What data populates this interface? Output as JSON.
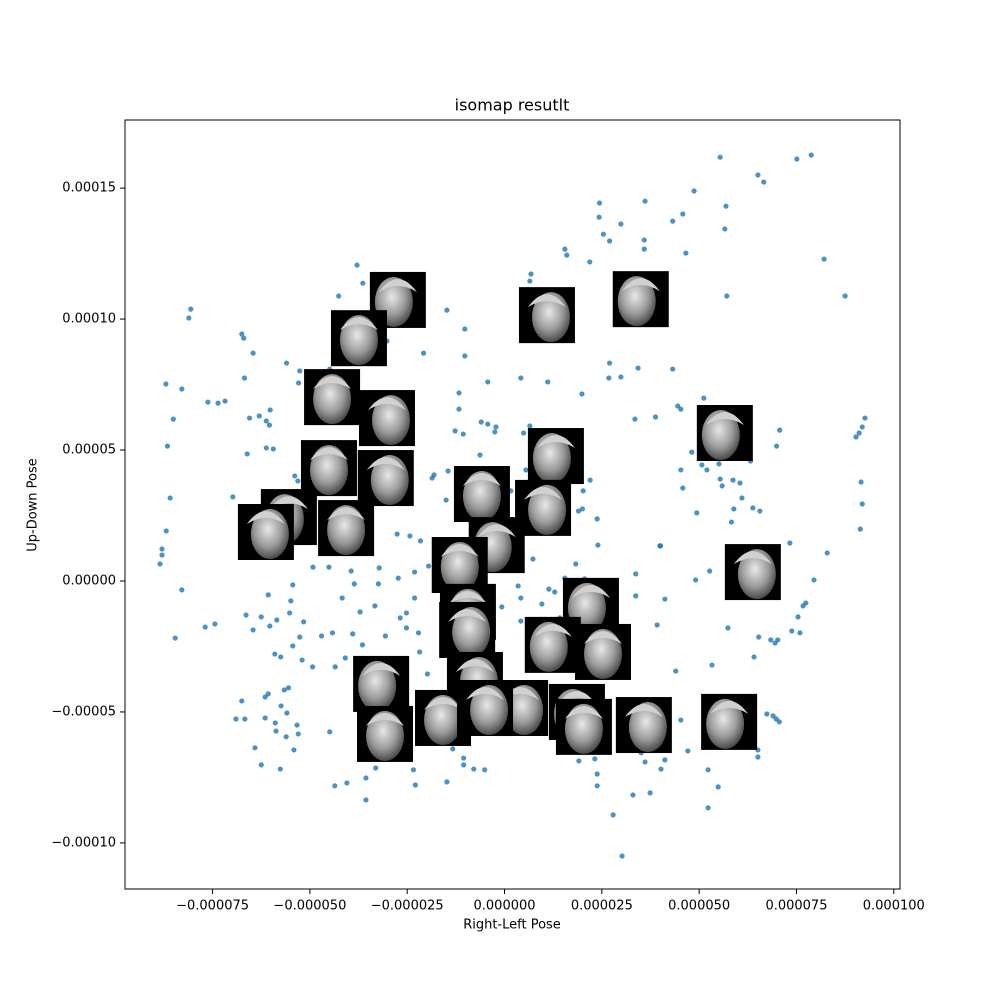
{
  "chart_data": {
    "type": "scatter",
    "title": "isomap resutlt",
    "x_label": "Right-Left Pose",
    "y_label": "Up-Down Pose",
    "color": "#1f77b4",
    "xlim": [
      -9.75e-05,
      0.0001016
    ],
    "ylim": [
      -0.0001176,
      0.000176
    ],
    "xticks": [
      {
        "value": -7.5e-05,
        "label": "−0.000075"
      },
      {
        "value": -5e-05,
        "label": "−0.000050"
      },
      {
        "value": -2.5e-05,
        "label": "−0.000025"
      },
      {
        "value": 0,
        "label": "0.000000"
      },
      {
        "value": 2.5e-05,
        "label": "0.000025"
      },
      {
        "value": 5e-05,
        "label": "0.000050"
      },
      {
        "value": 7.5e-05,
        "label": "0.000075"
      },
      {
        "value": 0.0001,
        "label": "0.000100"
      }
    ],
    "yticks": [
      {
        "value": -0.0001,
        "label": "−0.00010"
      },
      {
        "value": -5e-05,
        "label": "−0.00005"
      },
      {
        "value": 0,
        "label": "0.00000"
      },
      {
        "value": 5e-05,
        "label": "0.00005"
      },
      {
        "value": 0.0001,
        "label": "0.00010"
      },
      {
        "value": 0.00015,
        "label": "0.00015"
      }
    ],
    "x": [
      5.54e-05,
      7.51e-05,
      7.88e-05,
      6.51e-05,
      6.66e-05,
      4.87e-05,
      2.44e-05,
      4.58e-05,
      4.32e-05,
      5.69e-05,
      3.61e-05,
      2.99e-05,
      2.43e-05,
      2.54e-05,
      2.7e-05,
      3.59e-05,
      3.59e-05,
      4.66e-05,
      5.66e-05,
      1.55e-05,
      1.6e-05,
      2.19e-05,
      8.21e-05,
      8.75e-05,
      5.71e-05,
      6.8e-06,
      6.5e-06,
      -3.79e-05,
      -3.64e-05,
      -3.38e-05,
      -4.26e-05,
      -8.06e-05,
      -8.11e-05,
      -1.48e-05,
      -1.02e-05,
      -1.02e-05,
      -6.75e-05,
      -6.7e-05,
      -6.46e-05,
      -6.68e-05,
      -5.6e-05,
      -5.26e-05,
      -5.29e-05,
      -4.49e-05,
      -3.02e-05,
      -2.08e-05,
      -8.7e-05,
      -8.29e-05,
      -7.62e-05,
      -7.36e-05,
      -7.18e-05,
      -6.55e-05,
      -6.3e-05,
      -6.12e-05,
      -6.04e-05,
      -8.51e-05,
      -8.66e-05,
      -6.61e-05,
      -5.94e-05,
      -1.17e-05,
      -4.3e-06,
      4.2e-06,
      1.11e-05,
      1.99e-05,
      2.7e-05,
      2.68e-05,
      2.99e-05,
      3.43e-05,
      4.32e-05,
      3.88e-05,
      3.35e-05,
      4.53e-05,
      4.45e-05,
      -1.17e-05,
      -1.27e-05,
      -1.06e-05,
      -6e-06,
      -4.3e-06,
      -2.2e-06,
      -2.5e-06,
      4.9e-06,
      6.5e-06,
      5.12e-05,
      5.4e-05,
      6.17e-05,
      7.07e-05,
      6.99e-05,
      6.32e-05,
      4.81e-05,
      5.51e-05,
      5.07e-05,
      5.2e-05,
      4.53e-05,
      4.58e-05,
      5.54e-05,
      5.59e-05,
      5.87e-05,
      6.05e-05,
      6.1e-05,
      4.94e-05,
      5.89e-05,
      6.38e-05,
      6.56e-05,
      5.83e-05,
      9.26e-05,
      9.19e-05,
      9.03e-05,
      9.11e-05,
      9.16e-05,
      9.19e-05,
      9.14e-05,
      8.29e-05,
      7.33e-05,
      6.02e-05,
      5.27e-05,
      4.91e-05,
      4.12e-05,
      3.92e-05,
      3.99e-05,
      7.95e-05,
      7.74e-05,
      7.67e-05,
      7.54e-05,
      7.38e-05,
      7.59e-05,
      7.02e-05,
      6.95e-05,
      6.84e-05,
      6.53e-05,
      6.41e-05,
      5.74e-05,
      5.33e-05,
      4.4e-05,
      6.74e-05,
      6.9e-05,
      6.98e-05,
      7.06e-05,
      6.51e-05,
      6.51e-05,
      4.71e-05,
      5.23e-05,
      5.49e-05,
      5.23e-05,
      3.74e-05,
      3.3e-05,
      2.79e-05,
      3.02e-05,
      2.38e-05,
      2.38e-05,
      4.12e-05,
      3.61e-05,
      -8.8e-05,
      -8.8e-05,
      -8.85e-05,
      -8.59e-05,
      -8.69e-05,
      -8.29e-05,
      -8.46e-05,
      -7.69e-05,
      -7.44e-05,
      -6.98e-05,
      -6.64e-05,
      -6.25e-05,
      -6.07e-05,
      -6.46e-05,
      -6.03e-05,
      -5.85e-05,
      -5.52e-05,
      -5.49e-05,
      -5.44e-05,
      -5.9e-05,
      -5.75e-05,
      -5.44e-05,
      -5.26e-05,
      -5.16e-05,
      -4.7e-05,
      -4.42e-05,
      -3.9e-05,
      -4.93e-05,
      -5.2e-05,
      -6.75e-05,
      -6.9e-05,
      -6.67e-05,
      -6.15e-05,
      -6.07e-05,
      -6.15e-05,
      -5.89e-05,
      -5.74e-05,
      -5.66e-05,
      -5.55e-05,
      -5.59e-05,
      -5.87e-05,
      -5.61e-05,
      -5.33e-05,
      -5.3e-05,
      -6.41e-05,
      -5.41e-05,
      -6.25e-05,
      -5.76e-05,
      -4.49e-05,
      -4.36e-05,
      -4.05e-05,
      -3.56e-05,
      -3.56e-05,
      -3.31e-05,
      -2.34e-05,
      -2.29e-05,
      -1.48e-05,
      -1.05e-05,
      -7.9e-06,
      -5.1e-06,
      -1.05e-05,
      -1.33e-05,
      -4.92e-05,
      -4.51e-05,
      -3.94e-05,
      -3.22e-05,
      -3.86e-05,
      -3.24e-05,
      -2.73e-05,
      -4.17e-05,
      -3.71e-05,
      -3.33e-05,
      -4.35e-05,
      -4.09e-05,
      -3.65e-05,
      -3.06e-05,
      -2.68e-05,
      -2.52e-05,
      -2.31e-05,
      -2.52e-05,
      -2.21e-05,
      -2.18e-05,
      -1.98e-05,
      -2.76e-05,
      -2.43e-05,
      -2.31e-05,
      -1.95e-05,
      -2.16e-05,
      -5e-05,
      -5.85e-05,
      -5.39e-05,
      -5.31e-05,
      -5.21e-05,
      -5.65e-05,
      -6.12e-05,
      -6.02e-05,
      -1.86e-05,
      -1.81e-05,
      -1.45e-05,
      -1.5e-05,
      -1.12e-05,
      -6.3e-06,
      1.6e-06,
      5.5e-06,
      4.2e-06,
      7.3e-06,
      2.02e-05,
      2.2e-05,
      2e-05,
      2.38e-05,
      1.9e-05,
      1.83e-05,
      1.55e-05,
      2.06e-05,
      2.4e-05,
      1.29e-05,
      1.14e-05,
      9.6e-06,
      4.2e-06,
      3.5e-06,
      -7e-07,
      4.2e-06,
      8.6e-06,
      1.42e-05,
      4.01e-05,
      3.37e-05,
      3.37e-05,
      2.21e-05,
      2.6e-05,
      2.32e-05,
      1.91e-05,
      3.51e-05,
      4.23e-05,
      4.02e-05,
      3.3e-05,
      4.53e-05
    ],
    "y": [
      0.0001618,
      0.0001611,
      0.0001626,
      0.000155,
      0.0001523,
      0.0001489,
      0.0001443,
      0.0001401,
      0.0001374,
      0.0001431,
      0.000145,
      0.0001363,
      0.0001389,
      0.0001324,
      0.0001298,
      0.0001302,
      0.0001267,
      0.0001252,
      0.0001344,
      0.0001267,
      0.0001244,
      0.0001218,
      0.0001229,
      0.0001088,
      0.0001088,
      0.0001172,
      0.0001145,
      0.0001206,
      0.0001137,
      0.0001137,
      0.0001088,
      0.0001038,
      0.0001004,
      0.0001034,
      9.62e-05,
      8.59e-05,
      9.43e-05,
      9.27e-05,
      8.7e-05,
      7.75e-05,
      8.32e-05,
      8.02e-05,
      7.56e-05,
      8.09e-05,
      9.16e-05,
      8.7e-05,
      7.52e-05,
      7.33e-05,
      6.83e-05,
      6.79e-05,
      6.87e-05,
      6.22e-05,
      6.3e-05,
      6.11e-05,
      5.95e-05,
      6.18e-05,
      5.15e-05,
      4.85e-05,
      5.04e-05,
      7.18e-05,
      7.6e-05,
      7.75e-05,
      7.6e-05,
      7.14e-05,
      8.32e-05,
      7.75e-05,
      7.79e-05,
      8.13e-05,
      8.09e-05,
      6.26e-05,
      6.18e-05,
      6.56e-05,
      6.68e-05,
      6.56e-05,
      5.73e-05,
      5.61e-05,
      6.07e-05,
      5.99e-05,
      5.88e-05,
      5.69e-05,
      5.65e-05,
      5.92e-05,
      6.98e-05,
      6.18e-05,
      5.34e-05,
      5.76e-05,
      5.15e-05,
      4.58e-05,
      4.92e-05,
      4.47e-05,
      4.43e-05,
      4.24e-05,
      4.24e-05,
      3.55e-05,
      3.89e-05,
      3.63e-05,
      3.85e-05,
      3.74e-05,
      3.17e-05,
      2.6e-05,
      2.75e-05,
      2.79e-05,
      2.67e-05,
      2.25e-05,
      6.22e-05,
      5.88e-05,
      5.5e-05,
      5.65e-05,
      3.78e-05,
      2.94e-05,
      1.98e-05,
      1.07e-05,
      1.45e-05,
      9.9e-06,
      3.8e-06,
      4e-07,
      -6.9e-06,
      -1.68e-05,
      1.34e-05,
      4e-07,
      -8.4e-06,
      -9.5e-06,
      -1.37e-05,
      -1.91e-05,
      -1.98e-05,
      -2.25e-05,
      -2.37e-05,
      -2.25e-05,
      -2.14e-05,
      -2.9e-05,
      -1.79e-05,
      -3.21e-05,
      -3.44e-05,
      -5.08e-05,
      -5.15e-05,
      -5.27e-05,
      -5.38e-05,
      -6.45e-05,
      -6.72e-05,
      -6.49e-05,
      -7.21e-05,
      -7.86e-05,
      -8.66e-05,
      -8.09e-05,
      -8.17e-05,
      -8.93e-05,
      -0.000105,
      -7.82e-05,
      -7.37e-05,
      -6.83e-05,
      -6.91e-05,
      1.22e-05,
      9.9e-06,
      6.5e-06,
      3.17e-05,
      1.91e-05,
      -3.4e-06,
      -2.18e-05,
      -1.76e-05,
      -1.64e-05,
      3.21e-05,
      -1.3e-05,
      -1.37e-05,
      -5.3e-06,
      -1.87e-05,
      -1.72e-05,
      -1.49e-05,
      -1.22e-05,
      -7.6e-06,
      -1.5e-06,
      -2.79e-05,
      -2.9e-05,
      -2.48e-05,
      -2.14e-05,
      -1.56e-05,
      -2.1e-05,
      -1.98e-05,
      -2.02e-05,
      -3.28e-05,
      -3.02e-05,
      -4.58e-05,
      -5.27e-05,
      -5.27e-05,
      -4.43e-05,
      -4.31e-05,
      -5.23e-05,
      -5.42e-05,
      -4.77e-05,
      -4.16e-05,
      -4.08e-05,
      -5.04e-05,
      -5.73e-05,
      -5.95e-05,
      -5.5e-05,
      -5.84e-05,
      -6.37e-05,
      -6.45e-05,
      -7.02e-05,
      -7.18e-05,
      -5.76e-05,
      -7.82e-05,
      -7.71e-05,
      -8.36e-05,
      -7.52e-05,
      -7.14e-05,
      -7.21e-05,
      -7.79e-05,
      -7.67e-05,
      -7.02e-05,
      -7.18e-05,
      -7.21e-05,
      -6.76e-05,
      -6.41e-05,
      5.3e-06,
      5.3e-06,
      3.8e-06,
      5e-06,
      -1.1e-06,
      -1.1e-06,
      1.1e-06,
      -6.5e-06,
      -1.18e-05,
      -9.5e-06,
      -3.28e-05,
      -2.94e-05,
      -2.44e-05,
      -2.1e-05,
      -1.41e-05,
      -1.79e-05,
      -6.5e-06,
      -1.22e-05,
      -1.98e-05,
      -2.71e-05,
      -3.55e-05,
      1.79e-05,
      1.72e-05,
      3.4e-06,
      5.7e-06,
      1.53e-05,
      1.68e-05,
      1.56e-05,
      4.01e-05,
      3.82e-05,
      2.48e-05,
      2.44e-05,
      5.08e-05,
      6.53e-05,
      3.93e-05,
      4.05e-05,
      4.2e-05,
      3.09e-05,
      3.21e-05,
      4.81e-05,
      3.44e-05,
      4.24e-05,
      2.21e-05,
      8.4e-06,
      3.44e-05,
      3.85e-05,
      2.75e-05,
      2.37e-05,
      2.67e-05,
      6.5e-06,
      1.1e-06,
      8e-07,
      1.37e-05,
      -4.2e-06,
      -3.1e-06,
      -8.8e-06,
      -6.5e-06,
      -1.9e-06,
      -9.9e-06,
      -1.53e-05,
      -1.53e-05,
      -1.41e-05,
      1.34e-05,
      2.7e-06,
      -5.7e-06,
      -6.22e-05,
      -6.03e-05,
      -6.79e-05,
      -6.87e-05,
      -6.56e-05,
      -6.45e-05,
      -7.18e-05,
      -5.5e-05,
      -5.31e-05
    ],
    "thumbnails": {
      "x": [
        -2.74e-05,
        -3.74e-05,
        1.09e-05,
        3.5e-05,
        -4.43e-05,
        -3.02e-05,
        5.66e-05,
        -4.51e-05,
        -3.05e-05,
        1.32e-05,
        -5.8e-06,
        9.9e-06,
        -5.54e-05,
        -4.07e-05,
        -6.13e-05,
        -2e-06,
        -1.15e-05,
        6.38e-05,
        2.22e-05,
        -9.4e-06,
        -9.6e-06,
        1.24e-05,
        2.53e-05,
        -7.6e-06,
        -3.17e-05,
        -1.58e-05,
        4e-06,
        1.86e-05,
        2.04e-05,
        3.58e-05,
        5.77e-05,
        -3.07e-05,
        -5e-06
      ],
      "y": [
        0.0001073,
        9.27e-05,
        0.0001015,
        0.0001076,
        7.02e-05,
        6.22e-05,
        5.65e-05,
        4.31e-05,
        3.93e-05,
        4.77e-05,
        3.32e-05,
        2.79e-05,
        2.44e-05,
        2.02e-05,
        1.87e-05,
        1.37e-05,
        6.1e-06,
        3.4e-06,
        -9.5e-06,
        -1.18e-05,
        -1.87e-05,
        -2.44e-05,
        -2.71e-05,
        -3.78e-05,
        -3.93e-05,
        -5.23e-05,
        -4.85e-05,
        -5e-05,
        -5.57e-05,
        -5.5e-05,
        -5.38e-05,
        -5.84e-05,
        -4.85e-05
      ]
    }
  }
}
